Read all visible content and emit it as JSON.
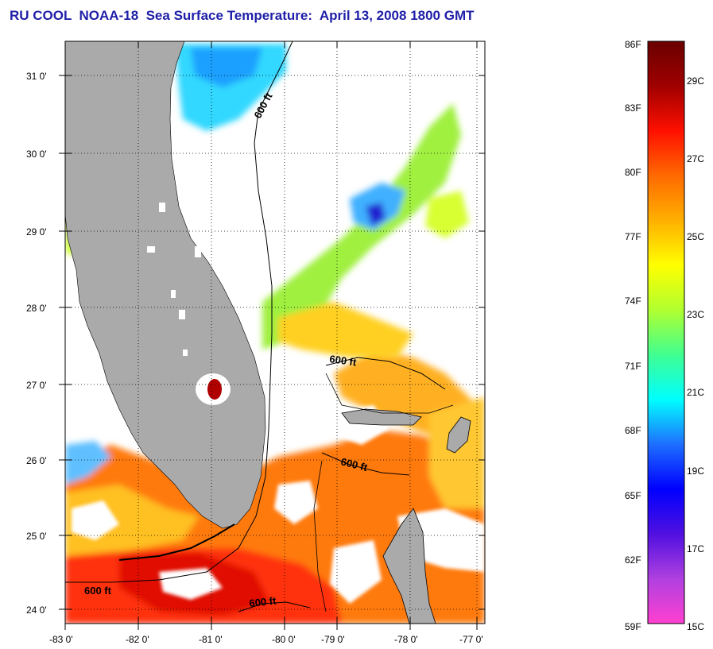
{
  "title": "RU COOL  NOAA-18  Sea Surface Temperature:  April 13, 2008 1800 GMT",
  "map": {
    "lat_ticks": [
      "31 0'",
      "30 0'",
      "29 0'",
      "28 0'",
      "27 0'",
      "26 0'",
      "25 0'",
      "24 0'"
    ],
    "lon_ticks": [
      "-83 0'",
      "-82 0'",
      "-81 0'",
      "-80 0'",
      "-79 0'",
      "-78 0'",
      "-77 0'"
    ],
    "contour_label": "600 ft",
    "colors": {
      "land": "#aaaaaa",
      "cloud": "#ffffff",
      "frame": "#000000"
    }
  },
  "colorbar": {
    "f_labels": [
      "86F",
      "83F",
      "80F",
      "77F",
      "74F",
      "71F",
      "68F",
      "65F",
      "62F",
      "59F"
    ],
    "c_labels": [
      "29C",
      "27C",
      "25C",
      "23C",
      "21C",
      "19C",
      "17C",
      "15C"
    ],
    "stops": [
      "#ff40d0",
      "#b040e0",
      "#5010e0",
      "#0000ff",
      "#1e6fff",
      "#00ffff",
      "#40ff90",
      "#b0ff30",
      "#ffff00",
      "#ffb000",
      "#ff6a00",
      "#ff1000",
      "#a00000",
      "#6a0000"
    ]
  }
}
